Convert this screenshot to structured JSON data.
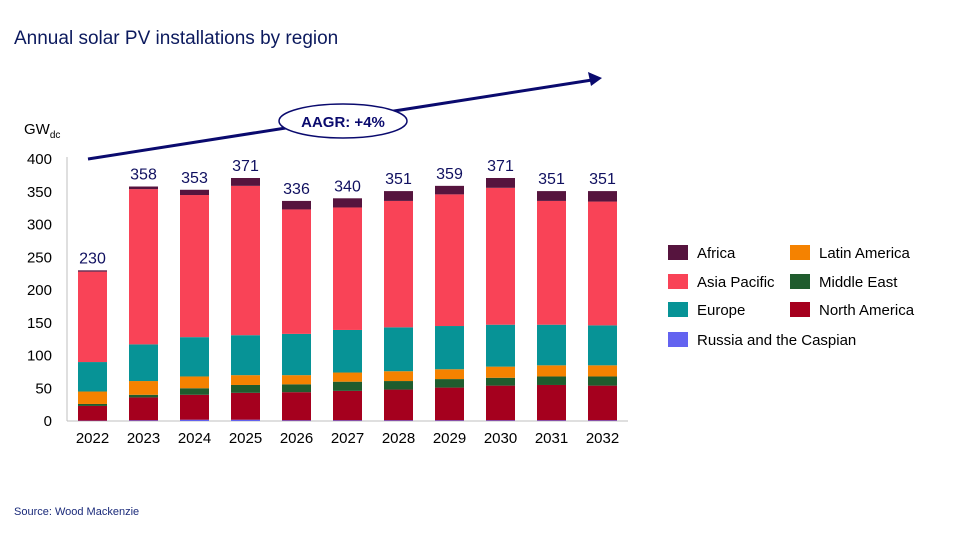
{
  "title": "Annual solar PV installations by region",
  "source": "Source: Wood Mackenzie",
  "annotation": "AAGR:  +4%",
  "colors": {
    "axis_text": "#000000",
    "totals": "#101060",
    "arrow": "#0a0a6e"
  },
  "chart_data": {
    "type": "bar",
    "stacked": true,
    "title": "Annual solar PV installations by region",
    "ylabel": "GW",
    "ylabel_sub": "dc",
    "ylim": [
      0,
      400
    ],
    "yticks": [
      0,
      50,
      100,
      150,
      200,
      250,
      300,
      350,
      400
    ],
    "grid": false,
    "legend_position": "right",
    "categories": [
      "2022",
      "2023",
      "2024",
      "2025",
      "2026",
      "2027",
      "2028",
      "2029",
      "2030",
      "2031",
      "2032"
    ],
    "totals": [
      230,
      358,
      353,
      371,
      336,
      340,
      351,
      359,
      371,
      351,
      351
    ],
    "series": [
      {
        "name": "Russia and the Caspian",
        "color": "#6363f0",
        "values": [
          0.5,
          1,
          2,
          2,
          1,
          1,
          1,
          1,
          1,
          1,
          1
        ]
      },
      {
        "name": "North America",
        "color": "#a5001e",
        "values": [
          22.5,
          35,
          38,
          41,
          43,
          45,
          47,
          50,
          53,
          54,
          53
        ]
      },
      {
        "name": "Middle East",
        "color": "#1f5c2e",
        "values": [
          3,
          4,
          10,
          12,
          12,
          14,
          13,
          13,
          12,
          13,
          14
        ]
      },
      {
        "name": "Latin America",
        "color": "#f58200",
        "values": [
          19,
          21,
          18,
          15,
          14,
          14,
          15,
          15,
          17,
          17,
          17
        ]
      },
      {
        "name": "Europe",
        "color": "#079396",
        "values": [
          45,
          56,
          60,
          61,
          63,
          65,
          67,
          66,
          64,
          62,
          61
        ]
      },
      {
        "name": "Asia Pacific",
        "color": "#f94357",
        "values": [
          138,
          237,
          217,
          228,
          190,
          187,
          193,
          201,
          209,
          189,
          189
        ]
      },
      {
        "name": "Africa",
        "color": "#56143e",
        "values": [
          2,
          4,
          8,
          12,
          13,
          14,
          15,
          13,
          15,
          15,
          16
        ]
      }
    ],
    "legend_order": [
      "Africa",
      "Latin America",
      "Asia Pacific",
      "Middle East",
      "Europe",
      "North America",
      "Russia and the Caspian"
    ]
  }
}
